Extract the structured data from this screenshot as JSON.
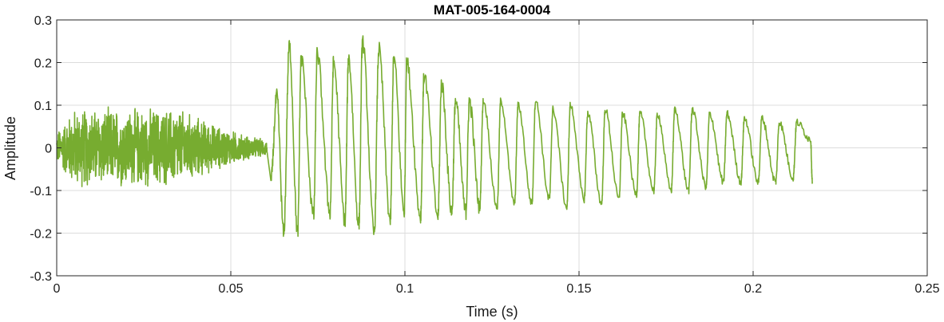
{
  "chart_data": {
    "type": "line",
    "title": "MAT-005-164-0004",
    "xlabel": "Time (s)",
    "ylabel": "Amplitude",
    "xlim": [
      0,
      0.25
    ],
    "ylim": [
      -0.3,
      0.3
    ],
    "xticks": [
      0,
      0.05,
      0.1,
      0.15,
      0.2,
      0.25
    ],
    "xtick_labels": [
      "0",
      "0.05",
      "0.1",
      "0.15",
      "0.2",
      "0.25"
    ],
    "yticks": [
      -0.3,
      -0.2,
      -0.1,
      0,
      0.1,
      0.2,
      0.3
    ],
    "ytick_labels": [
      "-0.3",
      "-0.2",
      "-0.1",
      "0",
      "0.1",
      "0.2",
      "0.3"
    ],
    "grid": true,
    "legend": "none",
    "series": [
      {
        "color": "#77ac30",
        "x_range": [
          0,
          0.2175
        ],
        "segments": [
          {
            "kind": "noise",
            "t_start": 0,
            "t_end": 0.0605,
            "envelope": [
              [
                0,
                0.04
              ],
              [
                0.005,
                0.1
              ],
              [
                0.02,
                0.1
              ],
              [
                0.035,
                0.1
              ],
              [
                0.045,
                0.06
              ],
              [
                0.055,
                0.03
              ],
              [
                0.0605,
                0.02
              ]
            ]
          },
          {
            "kind": "periodic",
            "t_start": 0.0605,
            "t_end": 0.2175,
            "period_s": 0.00505,
            "peaks": [
              [
                0.0632,
                0.12
              ],
              [
                0.0668,
                0.24
              ],
              [
                0.0702,
                0.21
              ],
              [
                0.0748,
                0.22
              ],
              [
                0.0795,
                0.2
              ],
              [
                0.0838,
                0.21
              ],
              [
                0.0878,
                0.25
              ],
              [
                0.0925,
                0.23
              ],
              [
                0.0968,
                0.21
              ],
              [
                0.1005,
                0.2
              ],
              [
                0.1055,
                0.17
              ],
              [
                0.1105,
                0.15
              ],
              [
                0.1145,
                0.11
              ],
              [
                0.1185,
                0.11
              ],
              [
                0.1225,
                0.11
              ],
              [
                0.1275,
                0.11
              ],
              [
                0.1325,
                0.1
              ],
              [
                0.1375,
                0.11
              ],
              [
                0.1425,
                0.09
              ],
              [
                0.1475,
                0.1
              ],
              [
                0.1525,
                0.08
              ],
              [
                0.1575,
                0.09
              ],
              [
                0.1625,
                0.08
              ],
              [
                0.1675,
                0.08
              ],
              [
                0.1725,
                0.08
              ],
              [
                0.1775,
                0.09
              ],
              [
                0.1825,
                0.09
              ],
              [
                0.1875,
                0.08
              ],
              [
                0.1925,
                0.08
              ],
              [
                0.1975,
                0.07
              ],
              [
                0.2025,
                0.07
              ],
              [
                0.2075,
                0.06
              ],
              [
                0.2125,
                0.06
              ],
              [
                0.2165,
                0.02
              ]
            ],
            "troughs": [
              [
                0.0615,
                -0.08
              ],
              [
                0.0652,
                -0.2
              ],
              [
                0.0692,
                -0.2
              ],
              [
                0.0738,
                -0.16
              ],
              [
                0.0785,
                -0.15
              ],
              [
                0.0828,
                -0.17
              ],
              [
                0.0868,
                -0.18
              ],
              [
                0.0912,
                -0.2
              ],
              [
                0.0958,
                -0.17
              ],
              [
                0.0998,
                -0.15
              ],
              [
                0.1045,
                -0.16
              ],
              [
                0.1095,
                -0.16
              ],
              [
                0.1135,
                -0.15
              ],
              [
                0.1175,
                -0.15
              ],
              [
                0.1215,
                -0.14
              ],
              [
                0.1265,
                -0.14
              ],
              [
                0.1315,
                -0.13
              ],
              [
                0.1365,
                -0.13
              ],
              [
                0.1415,
                -0.12
              ],
              [
                0.1465,
                -0.14
              ],
              [
                0.1515,
                -0.12
              ],
              [
                0.1565,
                -0.13
              ],
              [
                0.1615,
                -0.12
              ],
              [
                0.1665,
                -0.11
              ],
              [
                0.1715,
                -0.1
              ],
              [
                0.1765,
                -0.1
              ],
              [
                0.1815,
                -0.1
              ],
              [
                0.1865,
                -0.09
              ],
              [
                0.1915,
                -0.08
              ],
              [
                0.1965,
                -0.08
              ],
              [
                0.2015,
                -0.08
              ],
              [
                0.2065,
                -0.08
              ],
              [
                0.2115,
                -0.07
              ],
              [
                0.217,
                -0.08
              ]
            ]
          }
        ]
      }
    ]
  }
}
